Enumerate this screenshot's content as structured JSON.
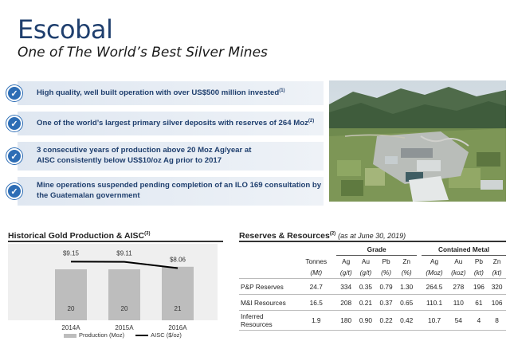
{
  "title": "Escobal",
  "subtitle": "One of The World’s Best Silver Mines",
  "bullets": [
    {
      "text": "High quality, well built operation with over US$500 million invested",
      "sup": "(1)"
    },
    {
      "text": "One of the world’s largest primary silver deposits with reserves of 264 Moz",
      "sup": "(2)"
    },
    {
      "text_line1": "3 consecutive years of production above 20 Moz Ag/year at",
      "text_line2": "AISC consistently below US$10/oz Ag prior to 2017"
    },
    {
      "text_line1": "Mine operations suspended pending completion of an ILO 169 consultation by",
      "text_line2": "the Guatemalan government"
    }
  ],
  "production_heading": "Historical Gold Production & AISC",
  "production_heading_sup": "(3)",
  "chart_data": {
    "type": "bar",
    "categories": [
      "2014A",
      "2015A",
      "2016A"
    ],
    "series": [
      {
        "name": "Production (Moz)",
        "type": "bar",
        "values": [
          20,
          20,
          21
        ],
        "color": "#bdbdbd"
      },
      {
        "name": "AISC ($/oz)",
        "type": "line",
        "values": [
          9.15,
          9.11,
          8.06
        ],
        "labels": [
          "$9.15",
          "$9.11",
          "$8.06"
        ],
        "color": "#000000"
      }
    ],
    "legend_placement": "bottom"
  },
  "reserves_heading": "Reserves & Resources",
  "reserves_heading_sup": "(2)",
  "reserves_note": "(as at June 30, 2019)",
  "reserves_table": {
    "groups": {
      "grade": "Grade",
      "metal": "Contained Metal"
    },
    "columns": [
      "Tonnes",
      "Ag",
      "Au",
      "Pb",
      "Zn",
      "Ag",
      "Au",
      "Pb",
      "Zn"
    ],
    "units": [
      "(Mt)",
      "(g/t)",
      "(g/t)",
      "(%)",
      "(%)",
      "(Moz)",
      "(koz)",
      "(kt)",
      "(kt)"
    ],
    "rows": [
      {
        "label": "P&P Reserves",
        "values": [
          "24.7",
          "334",
          "0.35",
          "0.79",
          "1.30",
          "264.5",
          "278",
          "196",
          "320"
        ]
      },
      {
        "label": "M&I Resources",
        "values": [
          "16.5",
          "208",
          "0.21",
          "0.37",
          "0.65",
          "110.1",
          "110",
          "61",
          "106"
        ]
      },
      {
        "label_line1": "Inferred",
        "label_line2": "Resources",
        "values": [
          "1.9",
          "180",
          "0.90",
          "0.22",
          "0.42",
          "10.7",
          "54",
          "4",
          "8"
        ]
      }
    ]
  }
}
